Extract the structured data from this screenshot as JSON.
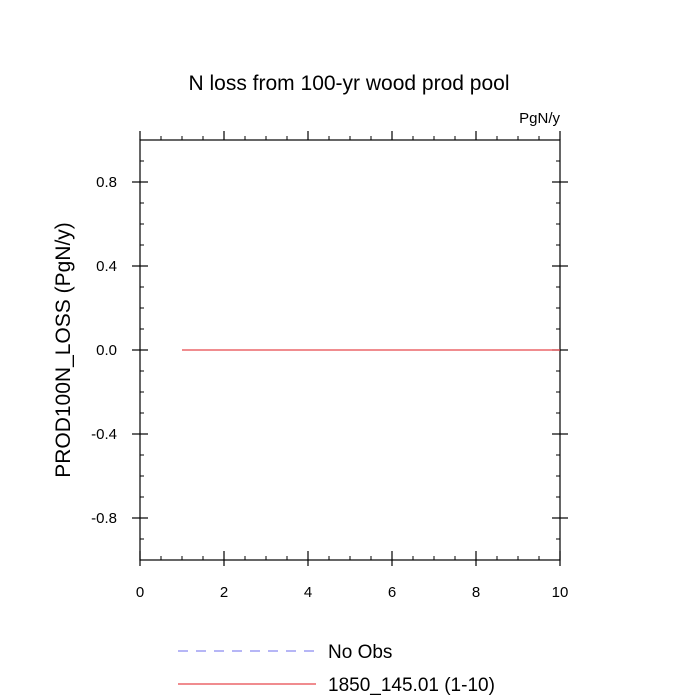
{
  "chart_data": {
    "type": "line",
    "title": "N loss from 100-yr wood prod pool",
    "units_label": "PgN/y",
    "ylabel": "PROD100N_LOSS  (PgN/y)",
    "xlabel": "",
    "xlim": [
      0,
      10
    ],
    "ylim": [
      -1,
      1
    ],
    "x_ticks": [
      0,
      2,
      4,
      6,
      8,
      10
    ],
    "x_tick_labels": [
      "0",
      "2",
      "4",
      "6",
      "8",
      "10"
    ],
    "y_ticks": [
      -0.8,
      -0.4,
      0.0,
      0.4,
      0.8
    ],
    "y_tick_labels": [
      "-0.8",
      "-0.4",
      "0.0",
      "0.4",
      "0.8"
    ],
    "grid": false,
    "legend_position": "bottom",
    "series": [
      {
        "name": "1850_145.01 (1-10)",
        "color": "#e8474c",
        "dash": "solid",
        "x": [
          1,
          2,
          3,
          4,
          5,
          6,
          7,
          8,
          9,
          10
        ],
        "y": [
          0,
          0,
          0,
          0,
          0,
          0,
          0,
          0,
          0,
          0
        ]
      }
    ],
    "legend": [
      {
        "label": "No Obs",
        "color": "#8a8af0",
        "dash": "dashed"
      },
      {
        "label": "1850_145.01 (1-10)",
        "color": "#e8474c",
        "dash": "solid"
      }
    ]
  }
}
